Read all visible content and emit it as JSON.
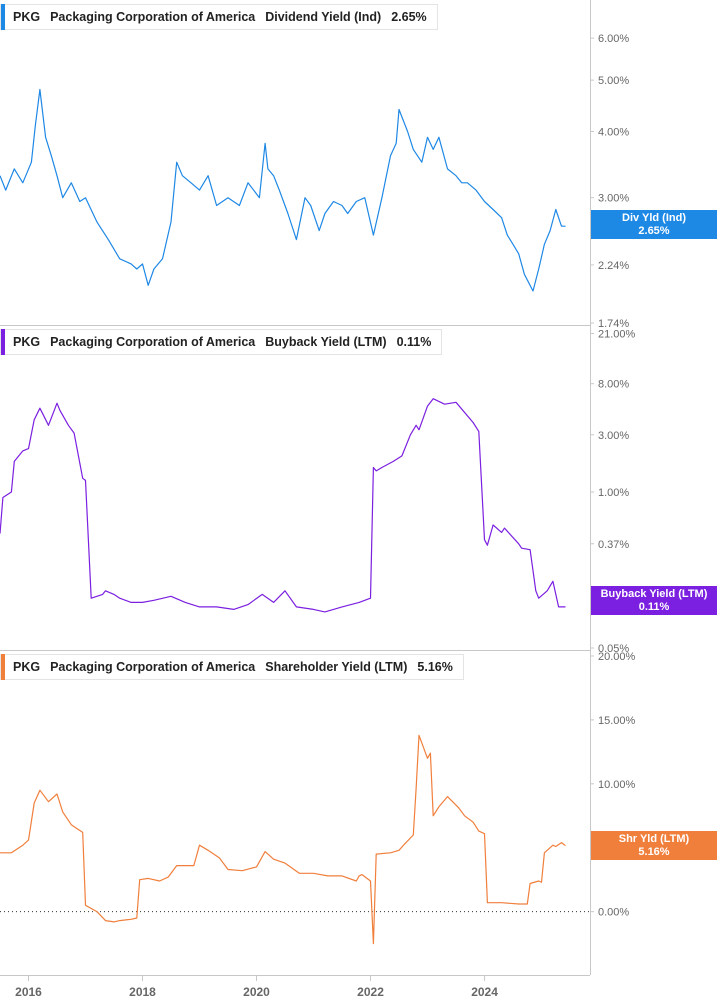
{
  "colors": {
    "dividend": "#1e88e5",
    "buyback": "#7b1fe0",
    "shareholder": "#f07f3c",
    "grid": "#c8c8c8",
    "axis_text": "#666666"
  },
  "chart_data": [
    {
      "type": "line",
      "panel": "dividend",
      "ticker": "PKG",
      "company": "Packaging Corporation of America",
      "metric": "Dividend Yield (Ind)",
      "current": "2.65%",
      "tag_label": "Div Yld (Ind)",
      "tag_value": "2.65%",
      "yscale": "log",
      "ylim": [
        1.74,
        6.9
      ],
      "yticks": [
        1.74,
        2.24,
        3.0,
        4.0,
        5.0,
        6.0
      ],
      "ytick_labels": [
        "1.74%",
        "2.24%",
        "3.00%",
        "4.00%",
        "5.00%",
        "6.00%"
      ],
      "series": [
        {
          "x": [
            2015.5,
            2015.6,
            2015.75,
            2015.9,
            2016.05,
            2016.12,
            2016.2,
            2016.3,
            2016.4,
            2016.5,
            2016.6,
            2016.75,
            2016.9,
            2017.0,
            2017.2,
            2017.4,
            2017.6,
            2017.8,
            2017.9,
            2018.0,
            2018.1,
            2018.2,
            2018.35,
            2018.5,
            2018.6,
            2018.7,
            2018.85,
            2019.0,
            2019.15,
            2019.3,
            2019.5,
            2019.7,
            2019.85,
            2020.05,
            2020.15,
            2020.2,
            2020.3,
            2020.4,
            2020.55,
            2020.7,
            2020.85,
            2020.95,
            2021.1,
            2021.2,
            2021.35,
            2021.5,
            2021.6,
            2021.75,
            2021.9,
            2022.05,
            2022.2,
            2022.35,
            2022.45,
            2022.5,
            2022.65,
            2022.75,
            2022.9,
            2023.0,
            2023.1,
            2023.2,
            2023.35,
            2023.5,
            2023.6,
            2023.7,
            2023.85,
            2024.0,
            2024.15,
            2024.3,
            2024.4,
            2024.5,
            2024.6,
            2024.7,
            2024.85,
            2024.95,
            2025.05,
            2025.15,
            2025.25,
            2025.35,
            2025.42
          ],
          "y": [
            3.3,
            3.1,
            3.4,
            3.2,
            3.5,
            4.1,
            4.8,
            3.9,
            3.6,
            3.3,
            3.0,
            3.2,
            2.95,
            3.0,
            2.7,
            2.5,
            2.3,
            2.25,
            2.2,
            2.25,
            2.05,
            2.2,
            2.3,
            2.7,
            3.5,
            3.3,
            3.2,
            3.1,
            3.3,
            2.9,
            3.0,
            2.9,
            3.2,
            3.0,
            3.8,
            3.4,
            3.3,
            3.1,
            2.8,
            2.5,
            3.0,
            2.9,
            2.6,
            2.8,
            2.95,
            2.9,
            2.8,
            2.95,
            3.0,
            2.55,
            3.0,
            3.6,
            3.8,
            4.4,
            4.0,
            3.7,
            3.5,
            3.9,
            3.7,
            3.9,
            3.4,
            3.3,
            3.2,
            3.2,
            3.1,
            2.95,
            2.85,
            2.75,
            2.55,
            2.45,
            2.35,
            2.15,
            2.0,
            2.2,
            2.45,
            2.6,
            2.85,
            2.65,
            2.65
          ]
        }
      ]
    },
    {
      "type": "line",
      "panel": "buyback",
      "ticker": "PKG",
      "company": "Packaging Corporation of America",
      "metric": "Buyback Yield (LTM)",
      "current": "0.11%",
      "tag_label": "Buyback Yield (LTM)",
      "tag_value": "0.11%",
      "yscale": "log",
      "ylim": [
        0.05,
        22.0
      ],
      "yticks": [
        0.05,
        0.11,
        0.37,
        1.0,
        3.0,
        8.0,
        21.0
      ],
      "ytick_labels": [
        "0.05%",
        "0.11%",
        "0.37%",
        "1.00%",
        "3.00%",
        "8.00%",
        "21.00%"
      ],
      "series": [
        {
          "x": [
            2015.5,
            2015.55,
            2015.7,
            2015.75,
            2015.9,
            2016.0,
            2016.1,
            2016.2,
            2016.35,
            2016.5,
            2016.55,
            2016.7,
            2016.8,
            2016.95,
            2017.0,
            2017.1,
            2017.3,
            2017.35,
            2017.5,
            2017.6,
            2017.8,
            2018.0,
            2018.2,
            2018.5,
            2018.75,
            2019.0,
            2019.3,
            2019.6,
            2019.85,
            2020.1,
            2020.3,
            2020.5,
            2020.7,
            2021.0,
            2021.2,
            2021.5,
            2021.8,
            2022.0,
            2022.05,
            2022.1,
            2022.2,
            2022.4,
            2022.55,
            2022.7,
            2022.8,
            2022.85,
            2023.0,
            2023.1,
            2023.3,
            2023.5,
            2023.8,
            2023.9,
            2024.0,
            2024.05,
            2024.15,
            2024.3,
            2024.35,
            2024.6,
            2024.65,
            2024.8,
            2024.9,
            2024.95,
            2025.1,
            2025.2,
            2025.3,
            2025.35,
            2025.42
          ],
          "y": [
            0.45,
            0.9,
            1.0,
            1.8,
            2.2,
            2.3,
            4.0,
            5.0,
            3.6,
            5.5,
            4.8,
            3.6,
            3.1,
            1.3,
            1.25,
            0.13,
            0.14,
            0.15,
            0.14,
            0.13,
            0.12,
            0.12,
            0.125,
            0.135,
            0.12,
            0.11,
            0.11,
            0.105,
            0.115,
            0.14,
            0.12,
            0.15,
            0.11,
            0.105,
            0.1,
            0.11,
            0.12,
            0.13,
            1.6,
            1.5,
            1.6,
            1.8,
            2.0,
            3.0,
            3.6,
            3.3,
            5.2,
            6.0,
            5.4,
            5.6,
            3.8,
            3.2,
            0.4,
            0.36,
            0.53,
            0.46,
            0.5,
            0.37,
            0.34,
            0.33,
            0.15,
            0.13,
            0.15,
            0.18,
            0.11,
            0.11,
            0.11
          ]
        }
      ]
    },
    {
      "type": "line",
      "panel": "shareholder",
      "ticker": "PKG",
      "company": "Packaging Corporation of America",
      "metric": "Shareholder Yield (LTM)",
      "current": "5.16%",
      "tag_label": "Shr Yld (LTM)",
      "tag_value": "5.16%",
      "yscale": "linear",
      "ylim": [
        -4.8,
        20.0
      ],
      "yticks": [
        0,
        5,
        10,
        15,
        20
      ],
      "ytick_labels": [
        "0.00%",
        "5.00%",
        "10.00%",
        "15.00%",
        "20.00%"
      ],
      "zero_line": 0,
      "series": [
        {
          "x": [
            2015.5,
            2015.7,
            2015.9,
            2016.0,
            2016.1,
            2016.2,
            2016.35,
            2016.5,
            2016.6,
            2016.75,
            2016.85,
            2016.95,
            2017.0,
            2017.2,
            2017.35,
            2017.5,
            2017.6,
            2017.8,
            2017.9,
            2017.95,
            2018.1,
            2018.3,
            2018.45,
            2018.6,
            2018.9,
            2019.0,
            2019.15,
            2019.35,
            2019.5,
            2019.75,
            2020.0,
            2020.15,
            2020.3,
            2020.5,
            2020.75,
            2021.0,
            2021.25,
            2021.5,
            2021.75,
            2021.8,
            2021.85,
            2022.0,
            2022.05,
            2022.1,
            2022.35,
            2022.5,
            2022.6,
            2022.75,
            2022.8,
            2022.85,
            2023.0,
            2023.05,
            2023.1,
            2023.2,
            2023.35,
            2023.55,
            2023.65,
            2023.8,
            2023.9,
            2024.0,
            2024.05,
            2024.3,
            2024.6,
            2024.75,
            2024.8,
            2024.95,
            2025.0,
            2025.05,
            2025.2,
            2025.25,
            2025.35,
            2025.42
          ],
          "y": [
            4.6,
            4.6,
            5.2,
            5.6,
            8.5,
            9.5,
            8.6,
            9.2,
            7.8,
            6.8,
            6.5,
            6.2,
            0.5,
            0.0,
            -0.7,
            -0.8,
            -0.7,
            -0.6,
            -0.5,
            2.5,
            2.6,
            2.4,
            2.7,
            3.6,
            3.6,
            5.2,
            4.8,
            4.2,
            3.3,
            3.2,
            3.5,
            4.7,
            4.1,
            3.8,
            3.0,
            3.0,
            2.8,
            2.8,
            2.4,
            2.8,
            2.9,
            2.4,
            -2.5,
            4.5,
            4.6,
            4.8,
            5.3,
            6.0,
            9.6,
            13.8,
            12.0,
            12.4,
            7.5,
            8.2,
            9.0,
            8.1,
            7.5,
            7.0,
            6.3,
            6.1,
            0.7,
            0.7,
            0.6,
            0.6,
            2.2,
            2.4,
            2.3,
            4.6,
            5.2,
            5.1,
            5.4,
            5.16
          ]
        }
      ]
    }
  ],
  "x_axis": {
    "ticks": [
      2016,
      2018,
      2020,
      2022,
      2024
    ],
    "labels": [
      "2016",
      "2018",
      "2020",
      "2022",
      "2024"
    ],
    "range": [
      2015.5,
      2025.85
    ]
  }
}
